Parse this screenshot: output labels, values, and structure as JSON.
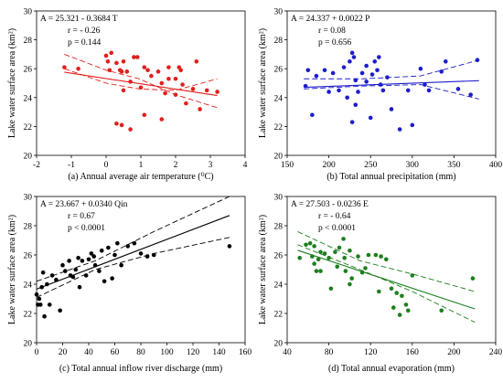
{
  "chart_data": [
    {
      "panel": "a",
      "type": "scatter",
      "caption": "(a) Annual average air temperature (⁰C)",
      "ylabel": "Lake water surface area (km²)",
      "xlim": [
        -2,
        4
      ],
      "ylim": [
        20,
        30
      ],
      "xticks": [
        "-2",
        "-1",
        "0",
        "1",
        "2",
        "3",
        "4"
      ],
      "yticks": [
        "20",
        "22",
        "24",
        "26",
        "28",
        "30"
      ],
      "equation": "A = 25.321 - 0.3684 T",
      "r": "r = - 0.26",
      "p": "p = 0.144",
      "color": "#e0201c",
      "points": [
        [
          -1.2,
          26.1
        ],
        [
          -0.8,
          26.0
        ],
        [
          0.0,
          26.9
        ],
        [
          0.05,
          26.5
        ],
        [
          0.1,
          25.9
        ],
        [
          0.15,
          27.1
        ],
        [
          0.3,
          26.4
        ],
        [
          0.4,
          25.9
        ],
        [
          0.45,
          25.8
        ],
        [
          0.5,
          26.5
        ],
        [
          0.6,
          25.8
        ],
        [
          0.7,
          25.1
        ],
        [
          0.8,
          26.8
        ],
        [
          0.9,
          26.8
        ],
        [
          1.0,
          24.7
        ],
        [
          1.1,
          26.1
        ],
        [
          1.2,
          25.9
        ],
        [
          1.3,
          25.5
        ],
        [
          1.5,
          25.8
        ],
        [
          1.6,
          25.0
        ],
        [
          1.7,
          24.3
        ],
        [
          1.8,
          25.3
        ],
        [
          2.0,
          25.3
        ],
        [
          2.1,
          26.1
        ],
        [
          2.15,
          25.9
        ],
        [
          2.2,
          24.9
        ],
        [
          2.3,
          23.6
        ],
        [
          2.5,
          24.6
        ],
        [
          2.6,
          26.5
        ],
        [
          2.7,
          23.2
        ],
        [
          2.9,
          24.5
        ],
        [
          3.2,
          24.4
        ],
        [
          0.3,
          22.2
        ],
        [
          0.45,
          22.1
        ],
        [
          0.7,
          21.8
        ],
        [
          1.1,
          22.8
        ],
        [
          1.6,
          22.5
        ],
        [
          2.0,
          24.2
        ],
        [
          0.5,
          24.5
        ],
        [
          1.8,
          26.1
        ]
      ],
      "fit": [
        25.321,
        -0.3684
      ],
      "fit_range": [
        -1.2,
        3.2
      ],
      "band": {
        "low": [
          [
            -1.2,
            26.0
          ],
          [
            0.0,
            25.0
          ],
          [
            0.95,
            24.6
          ],
          [
            2.0,
            24.5
          ],
          [
            3.2,
            25.3
          ]
        ],
        "high": [
          [
            -1.2,
            27.0
          ],
          [
            0.0,
            25.9
          ],
          [
            0.95,
            25.3
          ],
          [
            2.0,
            24.2
          ],
          [
            3.2,
            23.3
          ]
        ]
      }
    },
    {
      "panel": "b",
      "type": "scatter",
      "caption": "(b) Total annual precipitation (mm)",
      "ylabel": "Lake water surface area (km²)",
      "xlim": [
        150,
        400
      ],
      "ylim": [
        20,
        30
      ],
      "xticks": [
        "150",
        "200",
        "250",
        "300",
        "350",
        "400"
      ],
      "yticks": [
        "20",
        "22",
        "24",
        "26",
        "28",
        "30"
      ],
      "equation": "A = 24.337 + 0.0022 P",
      "r": "r = 0.08",
      "p": "p = 0.656",
      "color": "#1d1dcc",
      "points": [
        [
          172,
          24.8
        ],
        [
          175,
          25.9
        ],
        [
          180,
          22.8
        ],
        [
          185,
          25.5
        ],
        [
          195,
          25.9
        ],
        [
          200,
          24.4
        ],
        [
          205,
          25.7
        ],
        [
          212,
          24.5
        ],
        [
          218,
          26.1
        ],
        [
          222,
          24.0
        ],
        [
          225,
          26.5
        ],
        [
          228,
          27.1
        ],
        [
          228,
          22.3
        ],
        [
          230,
          26.8
        ],
        [
          232,
          25.2
        ],
        [
          235,
          24.4
        ],
        [
          240,
          25.7
        ],
        [
          245,
          26.2
        ],
        [
          250,
          22.6
        ],
        [
          252,
          25.6
        ],
        [
          255,
          26.5
        ],
        [
          258,
          25.9
        ],
        [
          260,
          26.8
        ],
        [
          265,
          24.5
        ],
        [
          270,
          25.4
        ],
        [
          275,
          23.2
        ],
        [
          285,
          21.8
        ],
        [
          295,
          24.5
        ],
        [
          300,
          22.1
        ],
        [
          310,
          26.0
        ],
        [
          315,
          24.9
        ],
        [
          320,
          24.5
        ],
        [
          335,
          25.8
        ],
        [
          340,
          26.5
        ],
        [
          355,
          24.6
        ],
        [
          370,
          24.2
        ],
        [
          378,
          26.6
        ],
        [
          232,
          23.5
        ],
        [
          245,
          25.1
        ],
        [
          262,
          24.9
        ]
      ],
      "fit": [
        24.337,
        0.0022
      ],
      "fit_range": [
        170,
        380
      ],
      "band": {
        "low": [
          [
            170,
            24.6
          ],
          [
            240,
            24.8
          ],
          [
            310,
            24.9
          ],
          [
            380,
            23.9
          ]
        ],
        "high": [
          [
            170,
            25.3
          ],
          [
            240,
            25.3
          ],
          [
            310,
            25.5
          ],
          [
            380,
            26.6
          ]
        ]
      }
    },
    {
      "panel": "c",
      "type": "scatter",
      "caption": "(c) Total annual inflow river discharge (mm)",
      "ylabel": "Lake water surface area (km²)",
      "xlim": [
        0,
        160
      ],
      "ylim": [
        20,
        30
      ],
      "xticks": [
        "0",
        "20",
        "40",
        "60",
        "80",
        "100",
        "120",
        "140",
        "160"
      ],
      "yticks": [
        "20",
        "22",
        "24",
        "26",
        "28",
        "30"
      ],
      "equation": "A = 23.667 + 0.0340 Qin",
      "r": "r = 0.67",
      "p": "p < 0.0001",
      "color": "#000000",
      "points": [
        [
          1,
          22.6
        ],
        [
          2,
          23.0
        ],
        [
          3,
          22.6
        ],
        [
          4,
          23.8
        ],
        [
          5,
          24.8
        ],
        [
          6,
          21.8
        ],
        [
          10,
          22.6
        ],
        [
          12,
          24.6
        ],
        [
          15,
          24.3
        ],
        [
          18,
          22.2
        ],
        [
          20,
          25.3
        ],
        [
          22,
          24.9
        ],
        [
          25,
          25.6
        ],
        [
          28,
          24.5
        ],
        [
          30,
          25.0
        ],
        [
          32,
          25.8
        ],
        [
          35,
          25.6
        ],
        [
          38,
          24.6
        ],
        [
          40,
          25.7
        ],
        [
          42,
          26.1
        ],
        [
          45,
          25.3
        ],
        [
          48,
          24.9
        ],
        [
          50,
          26.3
        ],
        [
          55,
          26.5
        ],
        [
          58,
          24.4
        ],
        [
          60,
          26.0
        ],
        [
          65,
          25.3
        ],
        [
          70,
          26.6
        ],
        [
          75,
          26.8
        ],
        [
          80,
          26.1
        ],
        [
          85,
          25.9
        ],
        [
          90,
          26.0
        ],
        [
          148,
          26.6
        ],
        [
          0,
          23.3
        ],
        [
          8,
          24.0
        ],
        [
          26,
          24.6
        ],
        [
          44,
          25.9
        ],
        [
          52,
          24.2
        ],
        [
          62,
          26.8
        ],
        [
          33,
          23.8
        ]
      ],
      "fit": [
        23.667,
        0.034
      ],
      "fit_range": [
        0,
        148
      ],
      "band": {
        "low": [
          [
            0,
            23.1
          ],
          [
            45,
            25.0
          ],
          [
            90,
            26.1
          ],
          [
            148,
            27.2
          ]
        ],
        "high": [
          [
            0,
            24.2
          ],
          [
            45,
            25.6
          ],
          [
            90,
            27.6
          ],
          [
            148,
            30.0
          ]
        ]
      }
    },
    {
      "panel": "d",
      "type": "scatter",
      "caption": "(d) Total annual evaporation (mm)",
      "ylabel": "Lake water surface area (km²)",
      "xlim": [
        40,
        240
      ],
      "ylim": [
        20,
        30
      ],
      "xticks": [
        "40",
        "80",
        "120",
        "160",
        "200",
        "240"
      ],
      "yticks": [
        "20",
        "22",
        "24",
        "26",
        "28",
        "30"
      ],
      "equation": "A = 27.503 - 0.0236 E",
      "r": "r = - 0.64",
      "p": "p < 0.0001",
      "color": "#1e7e1e",
      "points": [
        [
          52,
          25.8
        ],
        [
          58,
          26.7
        ],
        [
          62,
          26.8
        ],
        [
          64,
          25.9
        ],
        [
          66,
          25.4
        ],
        [
          68,
          24.9
        ],
        [
          70,
          25.7
        ],
        [
          72,
          24.9
        ],
        [
          76,
          26.1
        ],
        [
          80,
          25.8
        ],
        [
          82,
          23.7
        ],
        [
          86,
          26.2
        ],
        [
          90,
          26.5
        ],
        [
          94,
          27.1
        ],
        [
          95,
          25.8
        ],
        [
          96,
          24.9
        ],
        [
          100,
          26.3
        ],
        [
          102,
          24.4
        ],
        [
          108,
          25.9
        ],
        [
          112,
          24.8
        ],
        [
          115,
          25.1
        ],
        [
          118,
          26.0
        ],
        [
          125,
          26.0
        ],
        [
          130,
          25.9
        ],
        [
          135,
          25.7
        ],
        [
          140,
          23.7
        ],
        [
          145,
          23.4
        ],
        [
          148,
          21.9
        ],
        [
          150,
          23.2
        ],
        [
          154,
          22.6
        ],
        [
          156,
          22.2
        ],
        [
          160,
          24.6
        ],
        [
          188,
          22.2
        ],
        [
          218,
          24.4
        ],
        [
          72,
          26.2
        ],
        [
          88,
          25.2
        ],
        [
          100,
          24.0
        ],
        [
          128,
          23.5
        ],
        [
          142,
          22.4
        ],
        [
          66,
          26.6
        ]
      ],
      "fit": [
        27.503,
        -0.0236
      ],
      "fit_range": [
        50,
        220
      ],
      "band": {
        "low": [
          [
            50,
            26.7
          ],
          [
            110,
            25.0
          ],
          [
            160,
            23.5
          ],
          [
            220,
            21.4
          ]
        ],
        "high": [
          [
            50,
            27.6
          ],
          [
            110,
            25.6
          ],
          [
            160,
            24.7
          ],
          [
            220,
            23.5
          ]
        ]
      }
    }
  ]
}
